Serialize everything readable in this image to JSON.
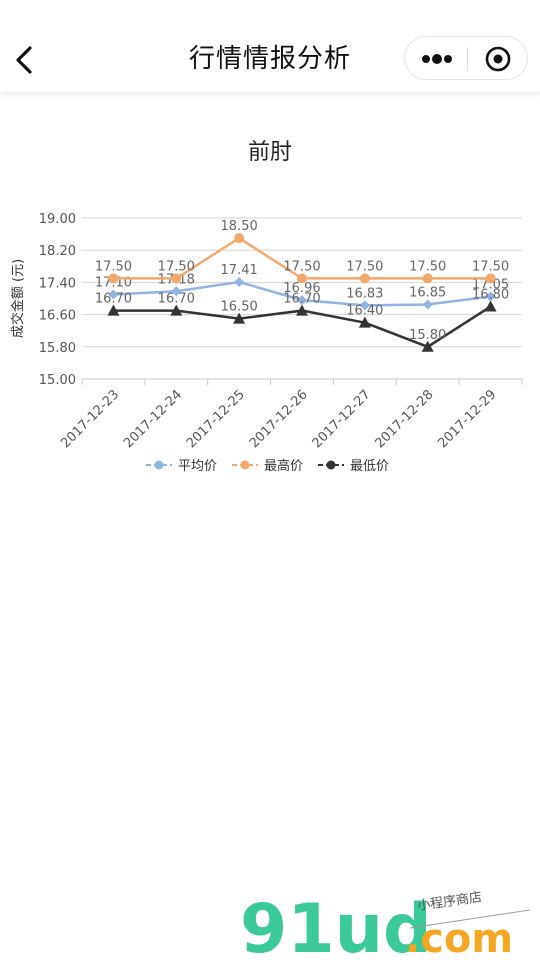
{
  "navbar": {
    "title": "行情情报分析"
  },
  "chart_data": {
    "type": "line",
    "title": "前肘",
    "xlabel": "",
    "ylabel": "成交金额 (元)",
    "ylim": [
      15.0,
      19.0
    ],
    "y_ticks": [
      "15.00",
      "15.80",
      "16.60",
      "17.40",
      "18.20",
      "19.00"
    ],
    "y_tick_values": [
      15.0,
      15.8,
      16.6,
      17.4,
      18.2,
      19.0
    ],
    "categories": [
      "2017-12-23",
      "2017-12-24",
      "2017-12-25",
      "2017-12-26",
      "2017-12-27",
      "2017-12-28",
      "2017-12-29"
    ],
    "grid": true,
    "legend_position": "bottom",
    "series": [
      {
        "name": "平均价",
        "color": "#8fb4e3",
        "marker": "diamond",
        "values": [
          17.1,
          17.18,
          17.41,
          16.96,
          16.83,
          16.85,
          17.05
        ],
        "labels": [
          "17.10",
          "17.18",
          "17.41",
          "16.96",
          "16.83",
          "16.85",
          "17.05"
        ]
      },
      {
        "name": "最高价",
        "color": "#f2a86a",
        "marker": "circle",
        "values": [
          17.5,
          17.5,
          18.5,
          17.5,
          17.5,
          17.5,
          17.5
        ],
        "labels": [
          "17.50",
          "17.50",
          "18.50",
          "17.50",
          "17.50",
          "17.50",
          "17.50"
        ]
      },
      {
        "name": "最低价",
        "color": "#333333",
        "marker": "triangle",
        "values": [
          16.7,
          16.7,
          16.5,
          16.7,
          16.4,
          15.8,
          16.8
        ],
        "labels": [
          "16.70",
          "16.70",
          "16.50",
          "16.70",
          "16.40",
          "15.80",
          "16.80"
        ]
      }
    ]
  },
  "watermark": {
    "brand": "91ud",
    "suffix": ".com",
    "tagline": "小程序商店",
    "brand_color": "#3bc99a",
    "suffix_color": "#f5a623"
  }
}
